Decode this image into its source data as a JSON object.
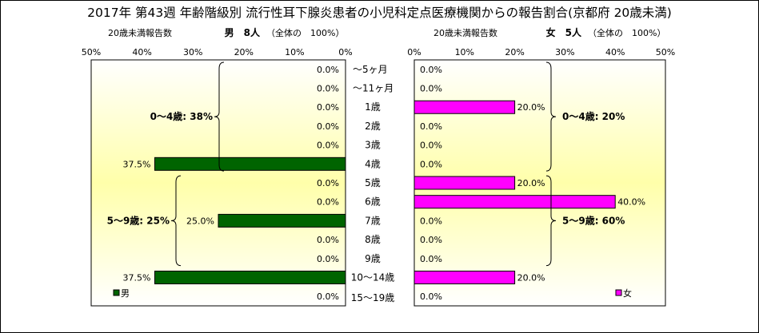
{
  "title": "2017年 第43週 年齢階級別 流行性耳下腺炎患者の小児科定点医療機関からの報告割合(京都府 20歳未満)",
  "colors": {
    "male": "#006400",
    "female": "#ff00ff"
  },
  "chart_data": [
    {
      "type": "bar",
      "orientation": "horizontal",
      "direction": "right-to-left",
      "header_left": "20歳未満報告数",
      "header_main": "男　8人",
      "header_total": "（全体の　100%）",
      "legend": "男",
      "legend_placement": "bottom-left",
      "xlim": [
        0,
        50
      ],
      "ticks": [
        "0%",
        "10%",
        "20%",
        "30%",
        "40%",
        "50%"
      ],
      "categories": [
        "～5ヶ月",
        "～11ヶ月",
        "1歳",
        "2歳",
        "3歳",
        "4歳",
        "5歳",
        "6歳",
        "7歳",
        "8歳",
        "9歳",
        "10～14歳",
        "15～19歳"
      ],
      "values": [
        0.0,
        0.0,
        0.0,
        0.0,
        0.0,
        37.5,
        0.0,
        0.0,
        25.0,
        0.0,
        0.0,
        37.5,
        0.0
      ],
      "data_labels": [
        "0.0%",
        "0.0%",
        "0.0%",
        "0.0%",
        "0.0%",
        "37.5%",
        "0.0%",
        "0.0%",
        "25.0%",
        "0.0%",
        "0.0%",
        "37.5%",
        "0.0%"
      ],
      "brackets": [
        {
          "label": "0～4歳: 38%",
          "from": 0,
          "to": 5
        },
        {
          "label": "5～9歳: 25%",
          "from": 6,
          "to": 10
        }
      ]
    },
    {
      "type": "bar",
      "orientation": "horizontal",
      "direction": "left-to-right",
      "header_left": "20歳未満報告数",
      "header_main": "女　5人",
      "header_total": "（全体の　100%）",
      "legend": "女",
      "legend_placement": "bottom-right",
      "xlim": [
        0,
        50
      ],
      "ticks": [
        "0%",
        "10%",
        "20%",
        "30%",
        "40%",
        "50%"
      ],
      "categories": [
        "～5ヶ月",
        "～11ヶ月",
        "1歳",
        "2歳",
        "3歳",
        "4歳",
        "5歳",
        "6歳",
        "7歳",
        "8歳",
        "9歳",
        "10～14歳",
        "15～19歳"
      ],
      "values": [
        0.0,
        0.0,
        20.0,
        0.0,
        0.0,
        0.0,
        20.0,
        40.0,
        0.0,
        0.0,
        0.0,
        20.0,
        0.0
      ],
      "data_labels": [
        "0.0%",
        "0.0%",
        "20.0%",
        "0.0%",
        "0.0%",
        "0.0%",
        "20.0%",
        "40.0%",
        "0.0%",
        "0.0%",
        "0.0%",
        "20.0%",
        "0.0%"
      ],
      "brackets": [
        {
          "label": "0～4歳: 20%",
          "from": 0,
          "to": 5
        },
        {
          "label": "5～9歳: 60%",
          "from": 6,
          "to": 10
        }
      ]
    }
  ]
}
